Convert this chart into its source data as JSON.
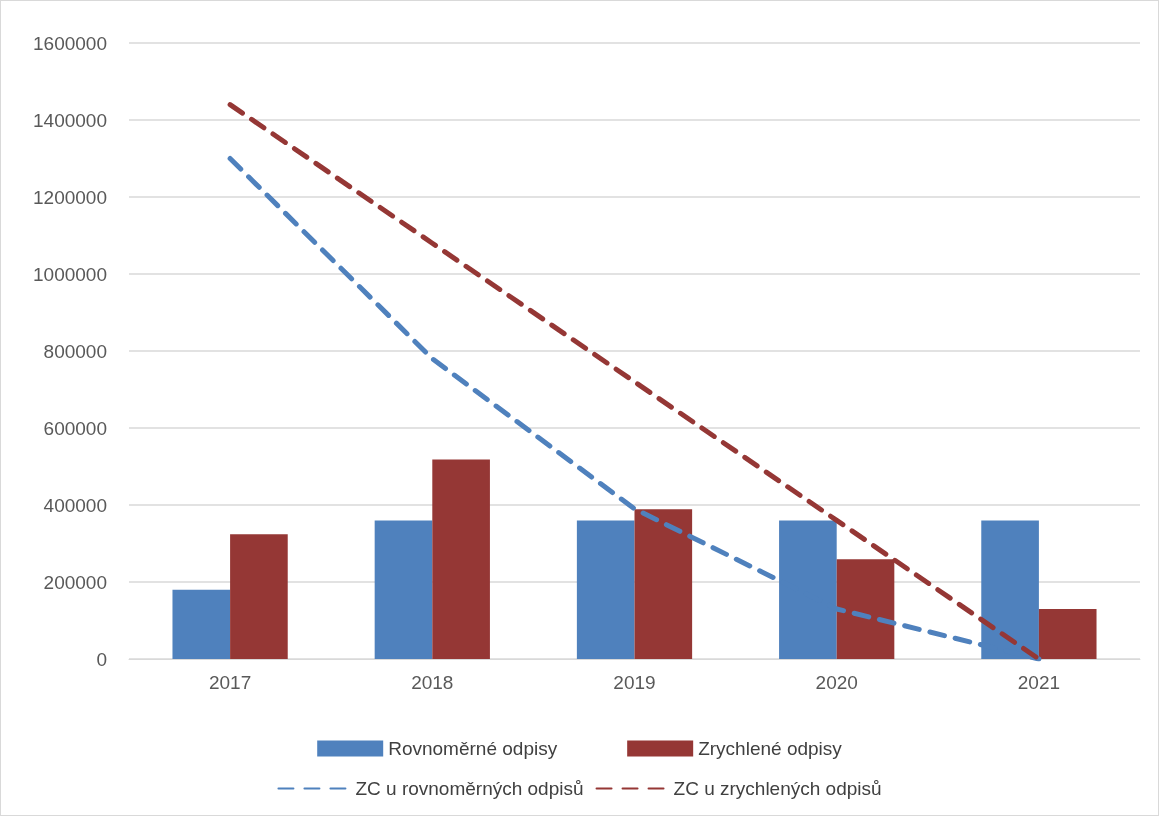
{
  "chart_data": {
    "type": "bar",
    "categories": [
      "2017",
      "2018",
      "2019",
      "2020",
      "2021"
    ],
    "series": [
      {
        "name": "Rovnoměrné odpisy",
        "color": "#4f81bd",
        "values": [
          180000,
          360000,
          360000,
          360000,
          360000
        ]
      },
      {
        "name": "Zrychlené odpisy",
        "color": "#953735",
        "values": [
          324000,
          518000,
          389000,
          259000,
          130000
        ]
      },
      {
        "name": "ZC u rovnoměrných odpisů",
        "type": "line",
        "color": "#4f81bd",
        "line_style": "dashed",
        "values": [
          1300000,
          780000,
          390000,
          130000,
          0
        ]
      },
      {
        "name": "ZC u zrychlených odpisů",
        "type": "line",
        "color": "#953735",
        "line_style": "dashed",
        "values": [
          1440000,
          1080000,
          720000,
          360000,
          0
        ]
      }
    ],
    "ylim": [
      0,
      1600000
    ],
    "yticks": [
      0,
      200000,
      400000,
      600000,
      800000,
      1000000,
      1200000,
      1400000,
      1600000
    ],
    "grid": "y",
    "legend": "bottom",
    "marker": "none"
  }
}
